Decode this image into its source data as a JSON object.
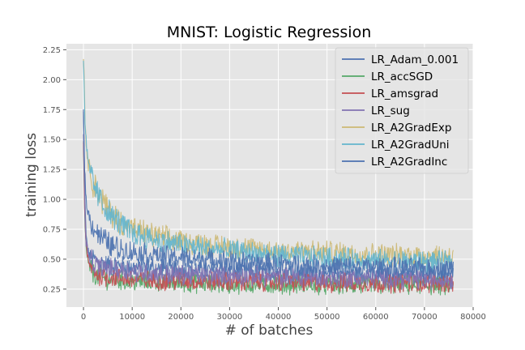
{
  "chart_data": {
    "type": "line",
    "title": "MNIST: Logistic Regression",
    "xlabel": "# of batches",
    "ylabel": "training loss",
    "xlim": [
      -3500,
      80000
    ],
    "ylim": [
      0.1,
      2.3
    ],
    "xticks": [
      0,
      10000,
      20000,
      30000,
      40000,
      50000,
      60000,
      70000,
      80000
    ],
    "xtick_labels": [
      "0",
      "10000",
      "20000",
      "30000",
      "40000",
      "50000",
      "60000",
      "70000",
      "80000"
    ],
    "yticks": [
      0.25,
      0.5,
      0.75,
      1.0,
      1.25,
      1.5,
      1.75,
      2.0,
      2.25
    ],
    "ytick_labels": [
      "0.25",
      "0.50",
      "0.75",
      "1.00",
      "1.25",
      "1.50",
      "1.75",
      "2.00",
      "2.25"
    ],
    "grid": true,
    "legend_position": "top-right",
    "series": [
      {
        "name": "LR_Adam_0.001",
        "color": "#4c72b0",
        "x": [
          0,
          200,
          500,
          1000,
          2000,
          3000,
          5000,
          8000,
          10000,
          15000,
          20000,
          30000,
          40000,
          50000,
          60000,
          70000,
          76000
        ],
        "y": [
          1.72,
          1.2,
          0.7,
          0.55,
          0.5,
          0.48,
          0.45,
          0.44,
          0.43,
          0.42,
          0.41,
          0.4,
          0.39,
          0.38,
          0.37,
          0.37,
          0.36
        ]
      },
      {
        "name": "LR_accSGD",
        "color": "#55a868",
        "x": [
          0,
          200,
          500,
          1000,
          2000,
          3000,
          5000,
          8000,
          10000,
          15000,
          20000,
          30000,
          40000,
          50000,
          60000,
          70000,
          76000
        ],
        "y": [
          1.45,
          0.95,
          0.6,
          0.45,
          0.38,
          0.35,
          0.33,
          0.32,
          0.31,
          0.31,
          0.3,
          0.29,
          0.29,
          0.28,
          0.28,
          0.28,
          0.27
        ]
      },
      {
        "name": "LR_amsgrad",
        "color": "#c44e52",
        "x": [
          0,
          200,
          500,
          1000,
          2000,
          3000,
          5000,
          8000,
          10000,
          15000,
          20000,
          30000,
          40000,
          50000,
          60000,
          70000,
          76000
        ],
        "y": [
          1.5,
          1.0,
          0.62,
          0.47,
          0.4,
          0.37,
          0.35,
          0.34,
          0.33,
          0.32,
          0.32,
          0.31,
          0.31,
          0.3,
          0.3,
          0.3,
          0.3
        ]
      },
      {
        "name": "LR_sug",
        "color": "#8172b2",
        "x": [
          0,
          200,
          500,
          1000,
          2000,
          3000,
          5000,
          8000,
          10000,
          15000,
          20000,
          30000,
          40000,
          50000,
          60000,
          70000,
          76000
        ],
        "y": [
          1.55,
          1.05,
          0.66,
          0.52,
          0.46,
          0.44,
          0.42,
          0.41,
          0.4,
          0.38,
          0.37,
          0.36,
          0.35,
          0.34,
          0.34,
          0.33,
          0.33
        ]
      },
      {
        "name": "LR_A2GradExp",
        "color": "#ccb974",
        "x": [
          0,
          300,
          600,
          1000,
          2000,
          3000,
          4000,
          5000,
          6000,
          8000,
          10000,
          15000,
          20000,
          25000,
          30000,
          40000,
          50000,
          60000,
          70000,
          76000
        ],
        "y": [
          2.2,
          1.7,
          1.45,
          1.3,
          1.15,
          1.05,
          0.98,
          0.92,
          0.87,
          0.8,
          0.75,
          0.69,
          0.65,
          0.62,
          0.6,
          0.57,
          0.56,
          0.54,
          0.53,
          0.53
        ]
      },
      {
        "name": "LR_A2GradUni",
        "color": "#64b5cd",
        "x": [
          0,
          300,
          600,
          1000,
          2000,
          3000,
          4000,
          5000,
          6000,
          8000,
          10000,
          15000,
          20000,
          25000,
          30000,
          40000,
          50000,
          60000,
          70000,
          76000
        ],
        "y": [
          2.2,
          1.68,
          1.43,
          1.28,
          1.13,
          1.03,
          0.96,
          0.9,
          0.85,
          0.78,
          0.72,
          0.66,
          0.62,
          0.59,
          0.57,
          0.53,
          0.51,
          0.49,
          0.48,
          0.47
        ]
      },
      {
        "name": "LR_A2GradInc",
        "color": "#4c72b0",
        "x": [
          0,
          200,
          500,
          1000,
          2000,
          3000,
          4000,
          5000,
          6000,
          8000,
          10000,
          15000,
          20000,
          25000,
          30000,
          40000,
          50000,
          60000,
          70000,
          76000
        ],
        "y": [
          1.73,
          1.3,
          1.0,
          0.88,
          0.77,
          0.71,
          0.67,
          0.64,
          0.61,
          0.58,
          0.56,
          0.53,
          0.51,
          0.5,
          0.48,
          0.46,
          0.44,
          0.43,
          0.42,
          0.42
        ]
      }
    ]
  }
}
